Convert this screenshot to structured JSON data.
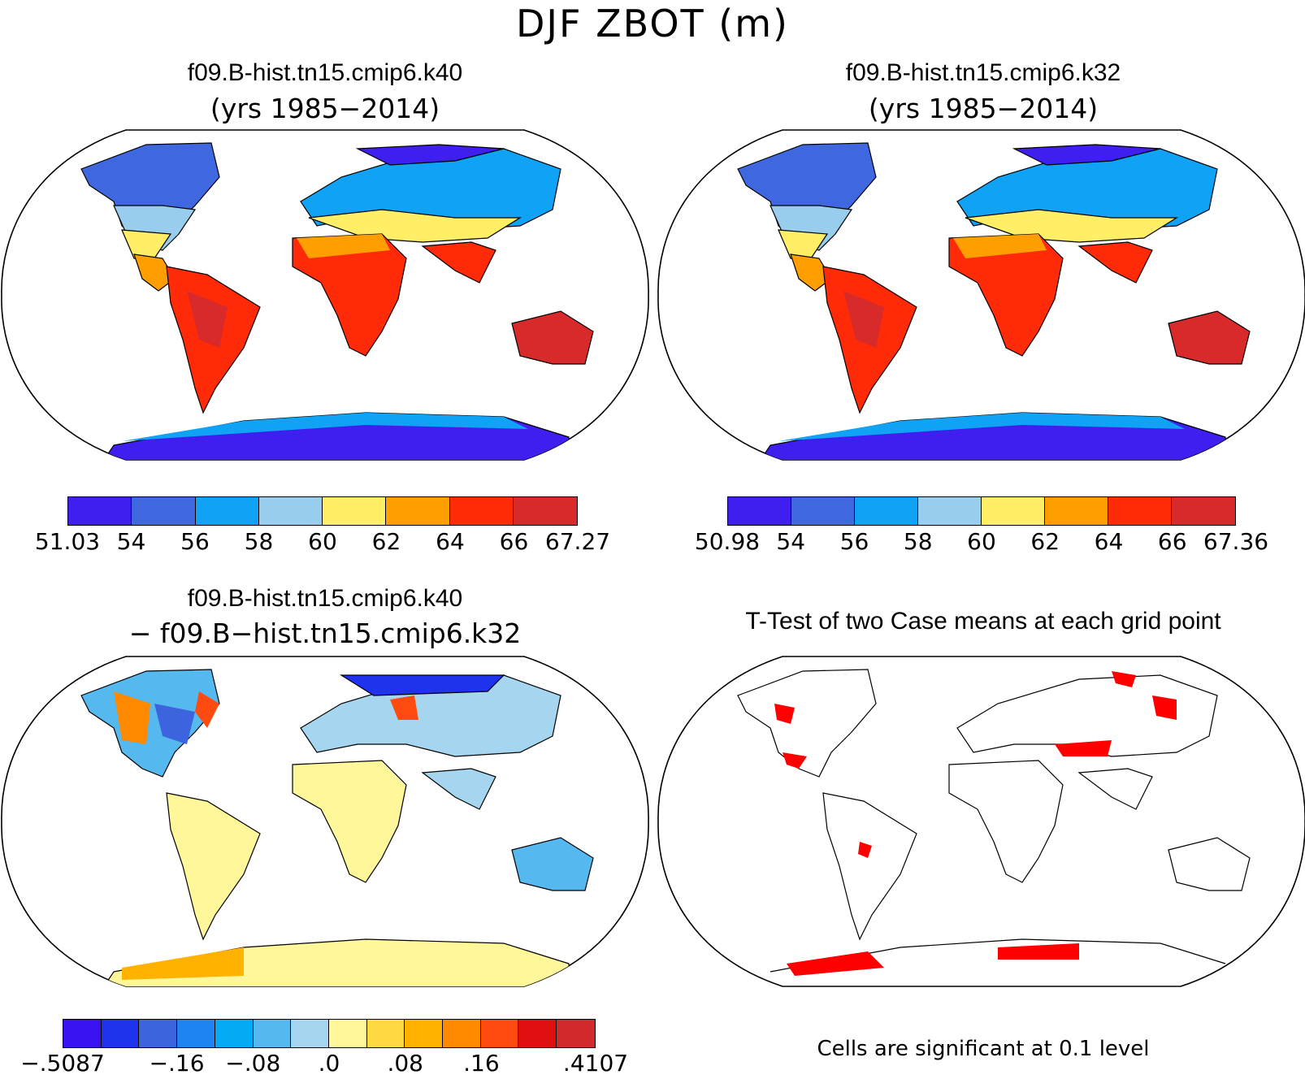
{
  "main_title": "DJF ZBOT (m)",
  "panels": [
    {
      "title": "f09.B-hist.tn15.cmip6.k40",
      "subtitle": "(yrs 1985−2014)",
      "colorbar": {
        "colors": [
          "#3f1ff0",
          "#3f68e0",
          "#0fa2f5",
          "#98cdee",
          "#ffee66",
          "#ff9e00",
          "#ff2a08",
          "#d82a2a"
        ],
        "labels": [
          "51.03",
          "54",
          "56",
          "58",
          "60",
          "62",
          "64",
          "66",
          "67.27"
        ]
      }
    },
    {
      "title": "f09.B-hist.tn15.cmip6.k32",
      "subtitle": "(yrs 1985−2014)",
      "colorbar": {
        "colors": [
          "#3f1ff0",
          "#3f68e0",
          "#0fa2f5",
          "#98cdee",
          "#ffee66",
          "#ff9e00",
          "#ff2a08",
          "#d82a2a"
        ],
        "labels": [
          "50.98",
          "54",
          "56",
          "58",
          "60",
          "62",
          "64",
          "66",
          "67.36"
        ]
      }
    },
    {
      "title": "f09.B-hist.tn15.cmip6.k40",
      "subtitle": "− f09.B−hist.tn15.cmip6.k32",
      "colorbar": {
        "colors": [
          "#3a12f2",
          "#1f32ee",
          "#3d64df",
          "#1e84f0",
          "#04aaf4",
          "#55b8ef",
          "#a6d6ef",
          "#fff799",
          "#ffd940",
          "#ffb300",
          "#ff8a00",
          "#ff4a10",
          "#e01010",
          "#d22a2a"
        ],
        "labels": [
          "−.5087",
          "−.16",
          "−.08",
          ".0",
          ".08",
          ".16",
          ".4107"
        ]
      }
    },
    {
      "title": "T-Test of two Case means at each grid point",
      "note": "Cells are significant at 0.1 level"
    }
  ]
}
